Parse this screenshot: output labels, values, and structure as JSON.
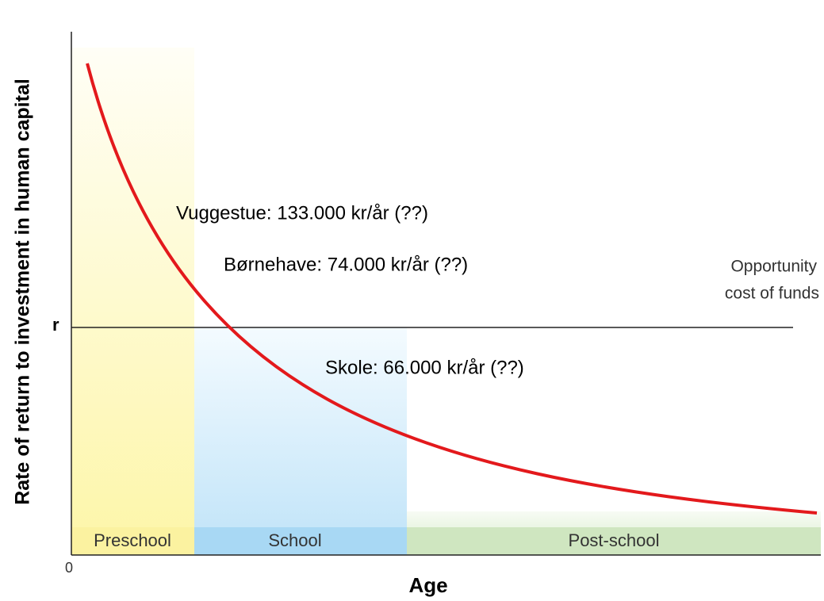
{
  "y_axis_label": "Rate of return to investment in human capital",
  "x_axis_label": "Age",
  "origin_label": "0",
  "r_label": "r",
  "opportunity_cost": [
    "Opportunity",
    "cost of funds"
  ],
  "regions": [
    "Preschool",
    "School",
    "Post-school"
  ],
  "annotations": [
    "Vuggestue: 133.000 kr/år (??)",
    "Børnehave: 74.000 kr/år (??)",
    "Skole: 66.000 kr/år (??)"
  ]
}
